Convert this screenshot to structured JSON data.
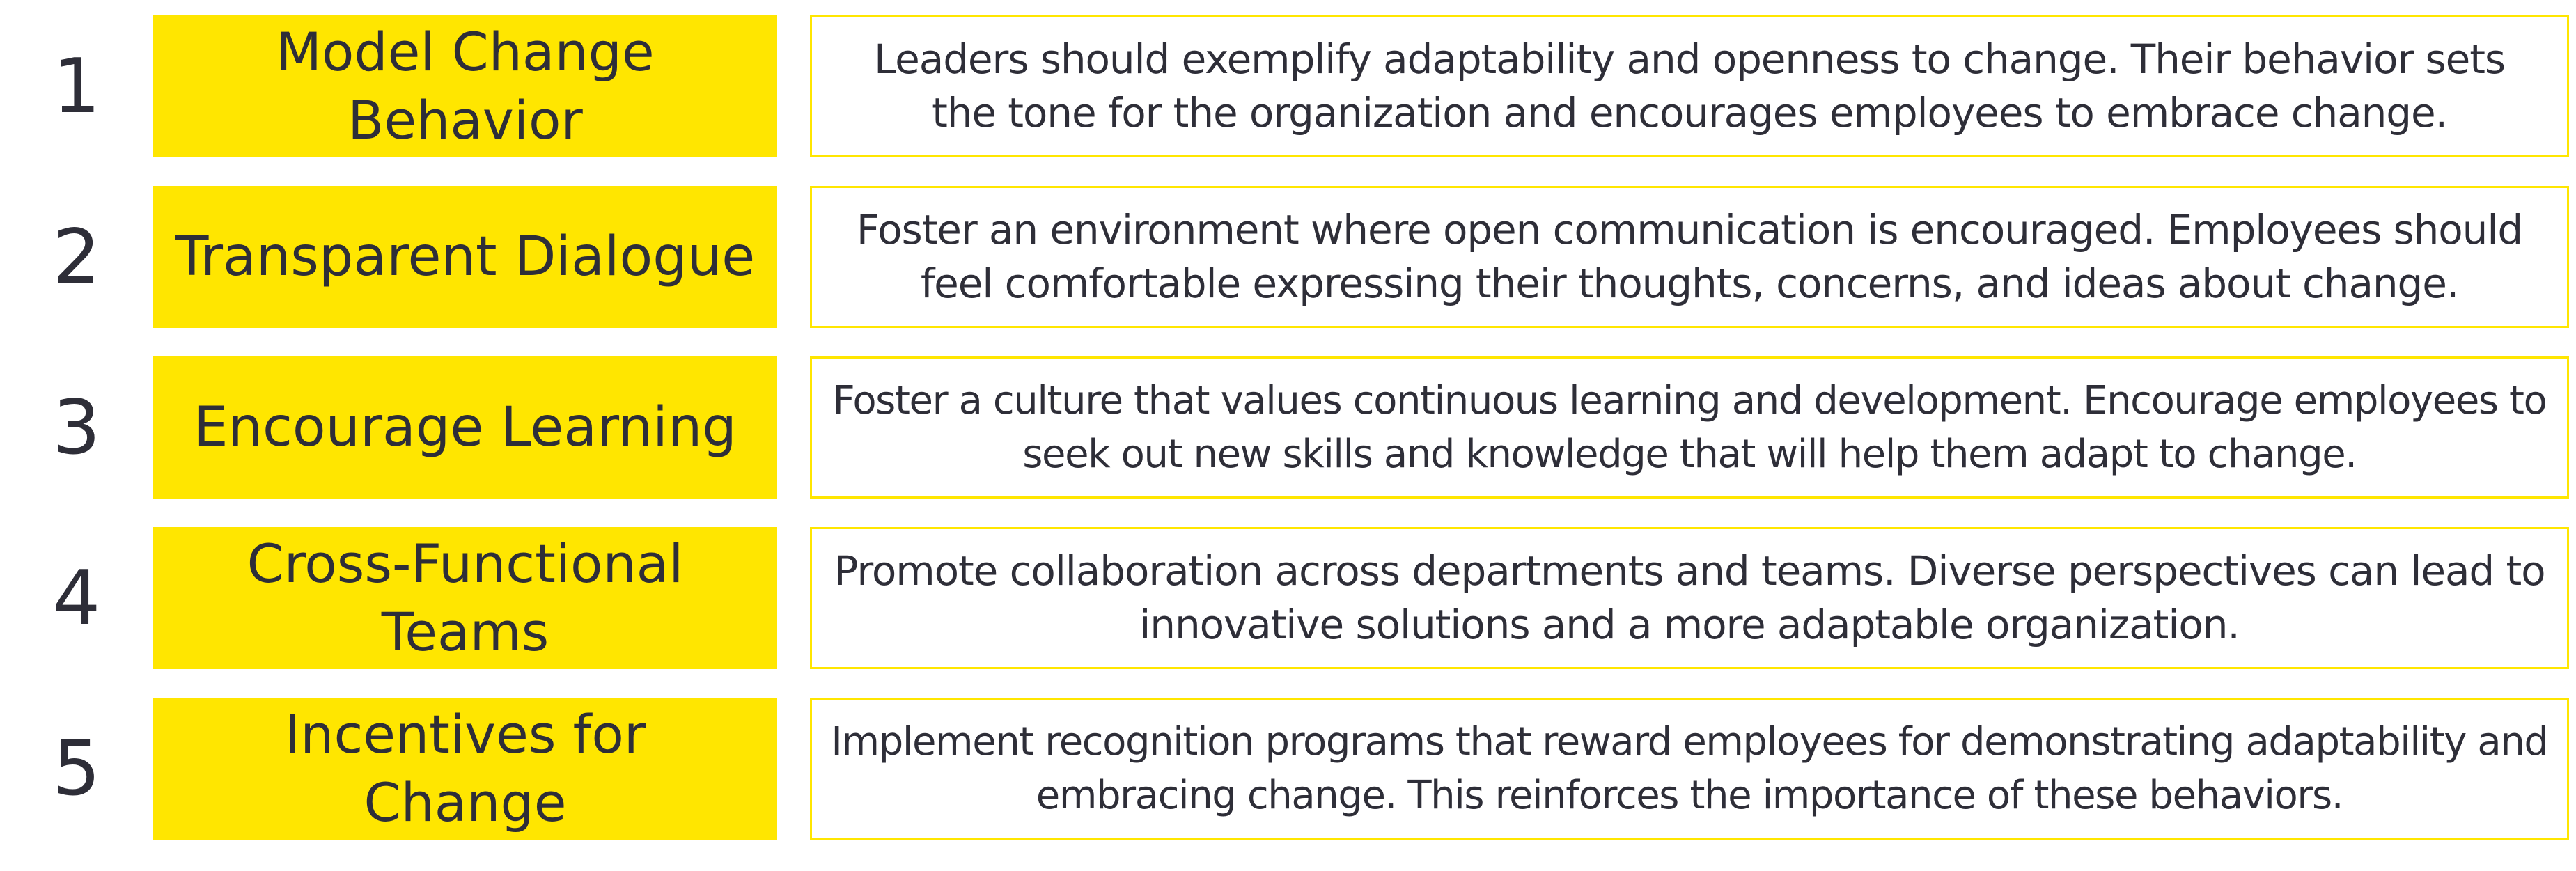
{
  "colors": {
    "accent_yellow": "#ffe600",
    "text_dark": "#2e2e38",
    "background": "#ffffff"
  },
  "items": [
    {
      "number": "1",
      "title": "Model Change Behavior",
      "description": "Leaders should exemplify adaptability and openness to change. Their behavior sets the tone for the organization and encourages employees to embrace change."
    },
    {
      "number": "2",
      "title": "Transparent Dialogue",
      "description": "Foster an environment where open communication is encouraged. Employees should feel comfortable expressing their thoughts, concerns, and ideas about change."
    },
    {
      "number": "3",
      "title": "Encourage Learning",
      "description": "Foster a culture that values continuous learning and development. Encourage employees to seek out new skills and knowledge that will help them adapt to change."
    },
    {
      "number": "4",
      "title": "Cross-Functional Teams",
      "description": "Promote collaboration across departments and teams. Diverse perspectives can lead to innovative solutions and a more adaptable organization."
    },
    {
      "number": "5",
      "title": "Incentives for Change",
      "description": "Implement recognition programs that reward employees for demonstrating adaptability and embracing change. This reinforces the importance of these behaviors."
    }
  ]
}
